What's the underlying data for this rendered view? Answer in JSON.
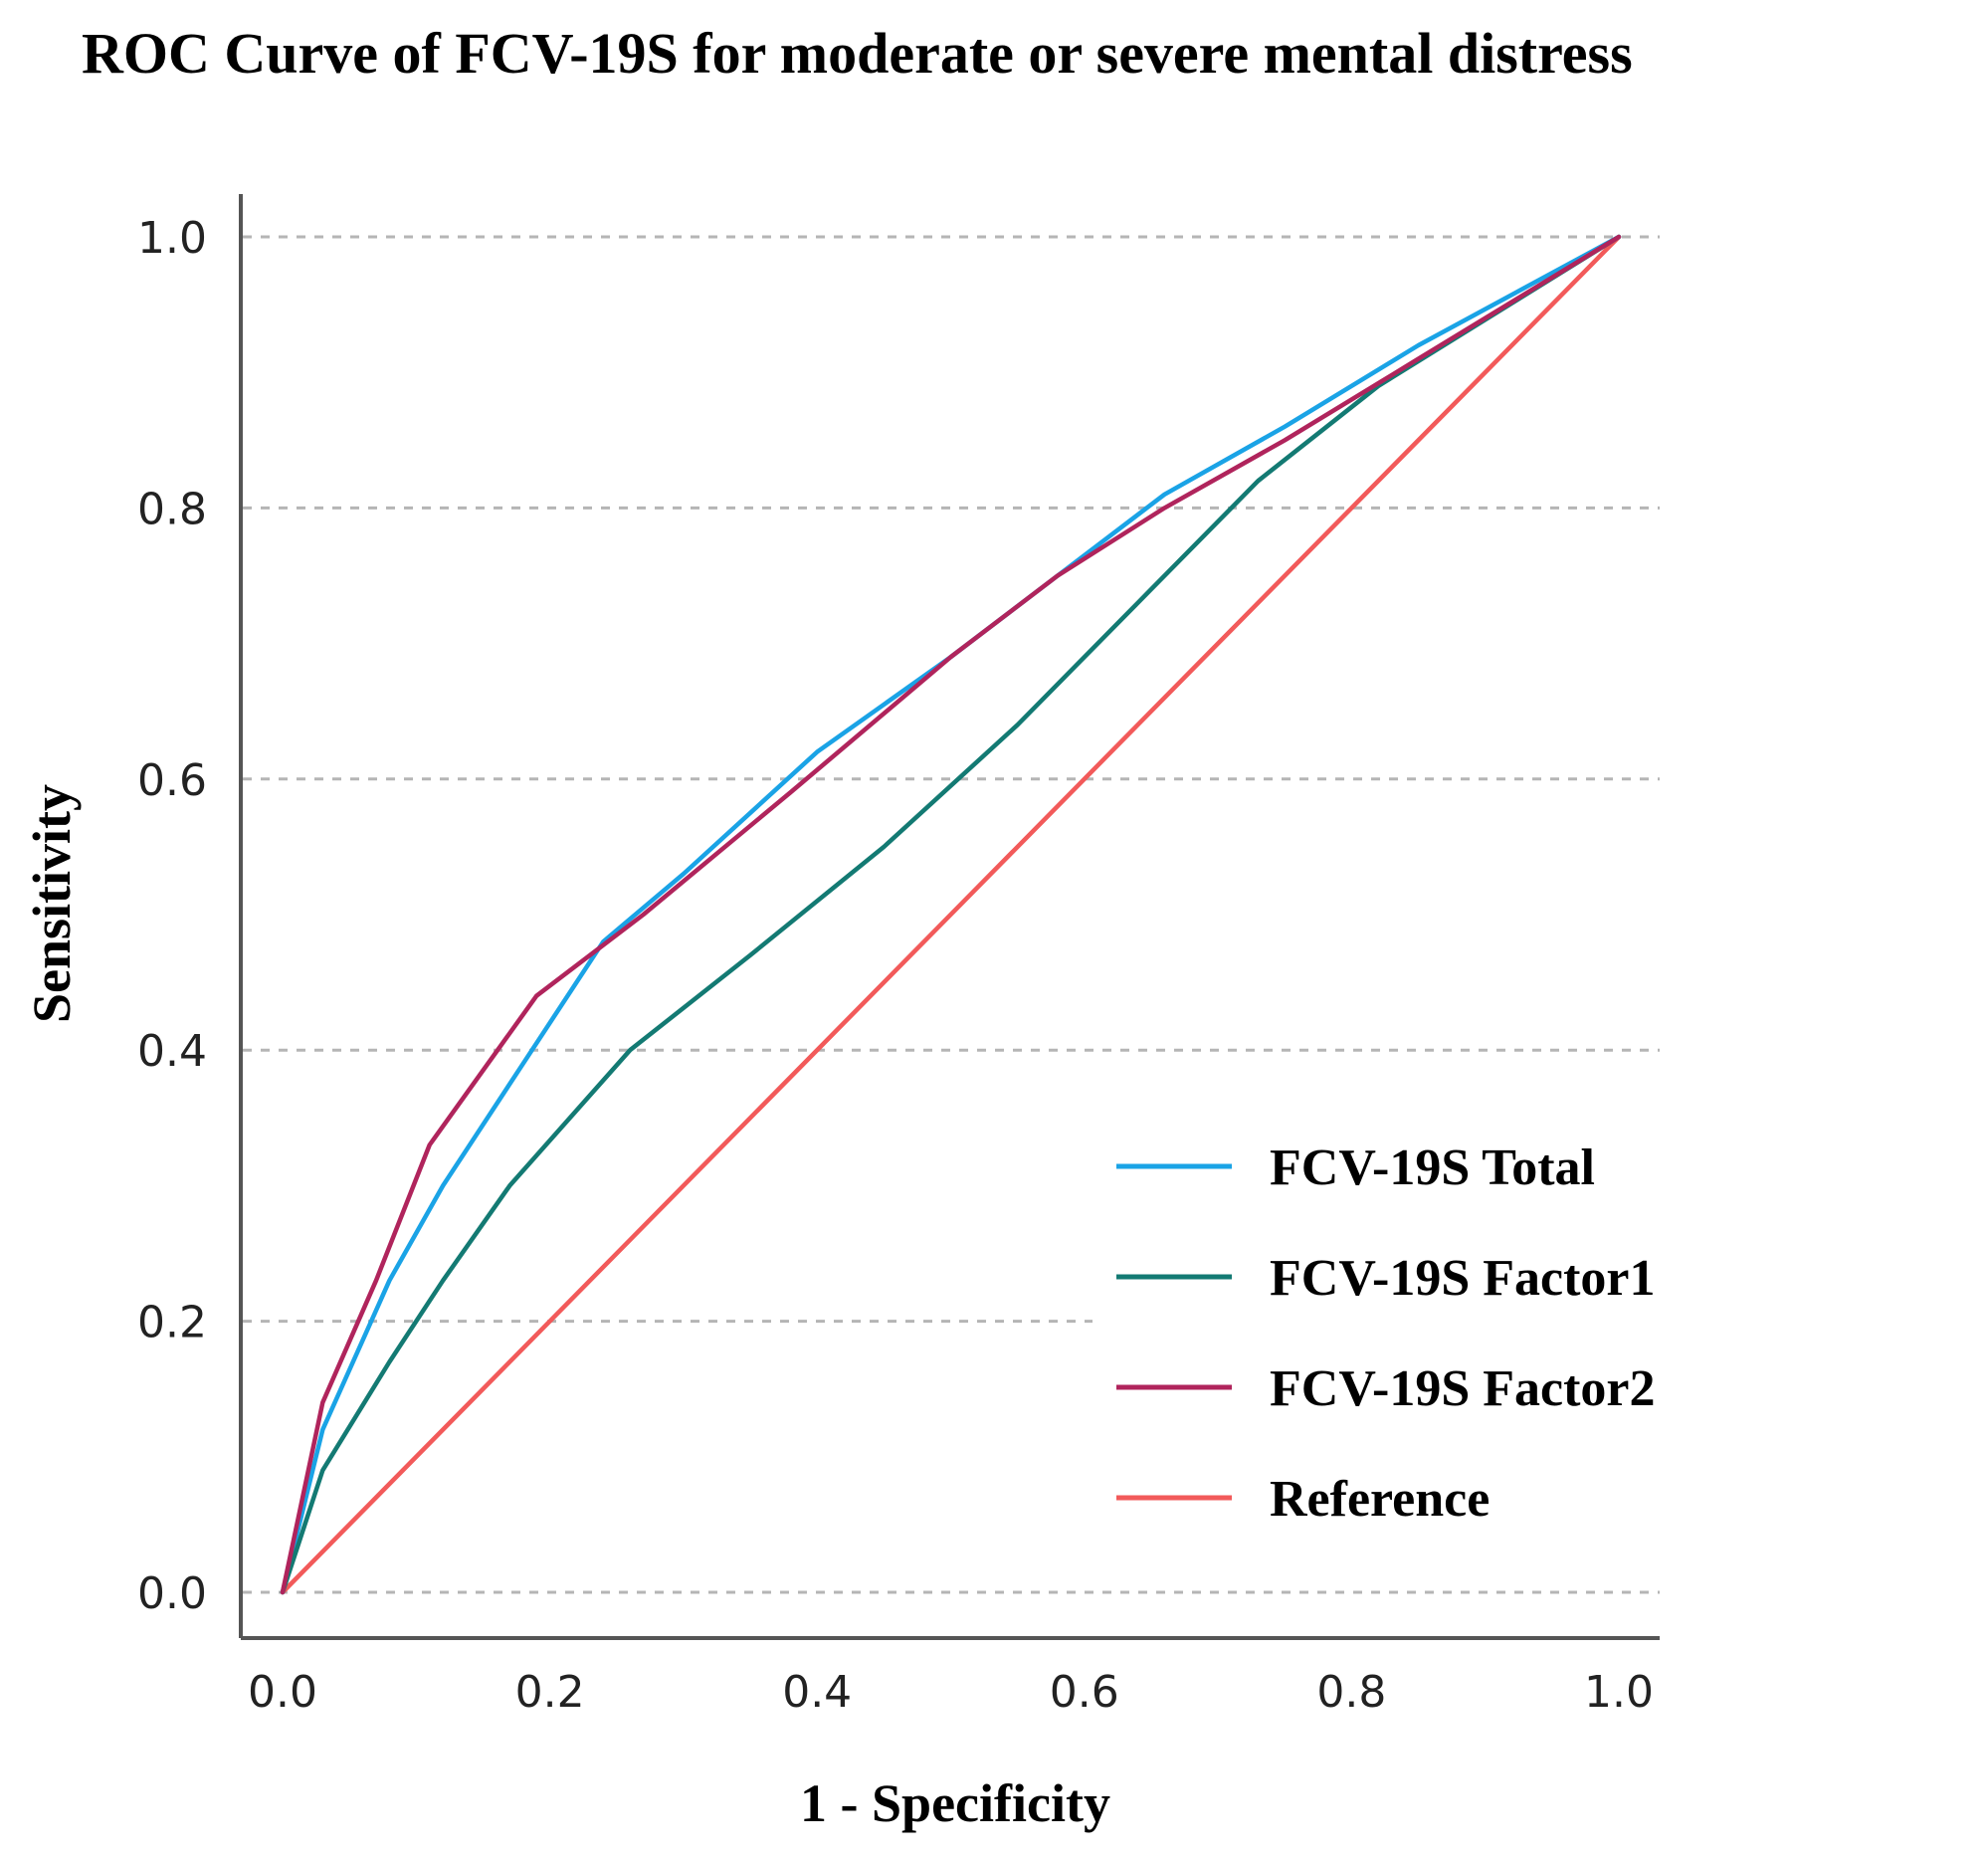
{
  "chart_data": {
    "type": "line",
    "title": "ROC Curve of FCV-19S for moderate or severe mental distress",
    "xlabel": "1 - Specificity",
    "ylabel": "Sensitivity",
    "xlim": [
      0,
      1
    ],
    "ylim": [
      0,
      1
    ],
    "x_ticks": [
      "0.0",
      "0.2",
      "0.4",
      "0.6",
      "0.8",
      "1.0"
    ],
    "y_ticks": [
      "0.0",
      "0.2",
      "0.4",
      "0.6",
      "0.8",
      "1.0"
    ],
    "grid": "horizontal dashed",
    "legend_position": "bottom-right",
    "series": [
      {
        "name": "FCV-19S Total",
        "color": "#1aa3e6",
        "x": [
          0.0,
          0.03,
          0.08,
          0.12,
          0.18,
          0.24,
          0.3,
          0.4,
          0.5,
          0.58,
          0.66,
          0.75,
          0.85,
          1.0
        ],
        "y": [
          0.0,
          0.12,
          0.23,
          0.3,
          0.39,
          0.48,
          0.53,
          0.62,
          0.69,
          0.75,
          0.81,
          0.86,
          0.92,
          1.0
        ]
      },
      {
        "name": "FCV-19S Factor1",
        "color": "#137a73",
        "x": [
          0.0,
          0.03,
          0.08,
          0.12,
          0.17,
          0.26,
          0.35,
          0.45,
          0.55,
          0.65,
          0.73,
          0.82,
          1.0
        ],
        "y": [
          0.0,
          0.09,
          0.17,
          0.23,
          0.3,
          0.4,
          0.47,
          0.55,
          0.64,
          0.74,
          0.82,
          0.89,
          1.0
        ]
      },
      {
        "name": "FCV-19S Factor2",
        "color": "#b0245c",
        "x": [
          0.0,
          0.03,
          0.07,
          0.11,
          0.19,
          0.27,
          0.38,
          0.5,
          0.58,
          0.66,
          0.75,
          0.85,
          1.0
        ],
        "y": [
          0.0,
          0.14,
          0.23,
          0.33,
          0.44,
          0.5,
          0.59,
          0.69,
          0.75,
          0.8,
          0.85,
          0.91,
          1.0
        ]
      },
      {
        "name": "Reference",
        "color": "#f25a5a",
        "x": [
          0.0,
          1.0
        ],
        "y": [
          0.0,
          1.0
        ]
      }
    ]
  }
}
